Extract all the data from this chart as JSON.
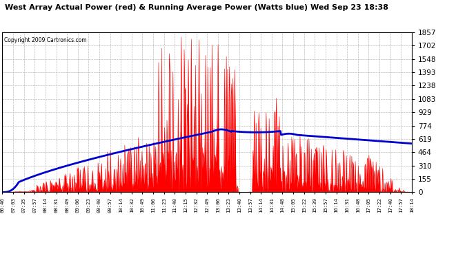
{
  "title": "West Array Actual Power (red) & Running Average Power (Watts blue) Wed Sep 23 18:38",
  "copyright": "Copyright 2009 Cartronics.com",
  "ymax": 1857.2,
  "yticks": [
    0.0,
    154.8,
    309.5,
    464.3,
    619.1,
    773.8,
    928.6,
    1083.4,
    1238.1,
    1392.9,
    1547.7,
    1702.4,
    1857.2
  ],
  "xtick_labels": [
    "06:46",
    "07:03",
    "07:35",
    "07:57",
    "08:14",
    "08:31",
    "08:49",
    "09:06",
    "09:23",
    "09:40",
    "09:57",
    "10:14",
    "10:32",
    "10:49",
    "11:06",
    "11:23",
    "11:40",
    "12:15",
    "12:32",
    "12:49",
    "13:06",
    "13:23",
    "13:40",
    "13:57",
    "14:14",
    "14:31",
    "14:48",
    "15:05",
    "15:22",
    "15:39",
    "15:57",
    "16:14",
    "16:31",
    "16:48",
    "17:05",
    "17:22",
    "17:40",
    "17:57",
    "18:14"
  ],
  "bg_color": "#ffffff",
  "plot_bg": "#ffffff",
  "grid_color": "#bbbbbb",
  "red_color": "#ff0000",
  "blue_color": "#0000cc"
}
